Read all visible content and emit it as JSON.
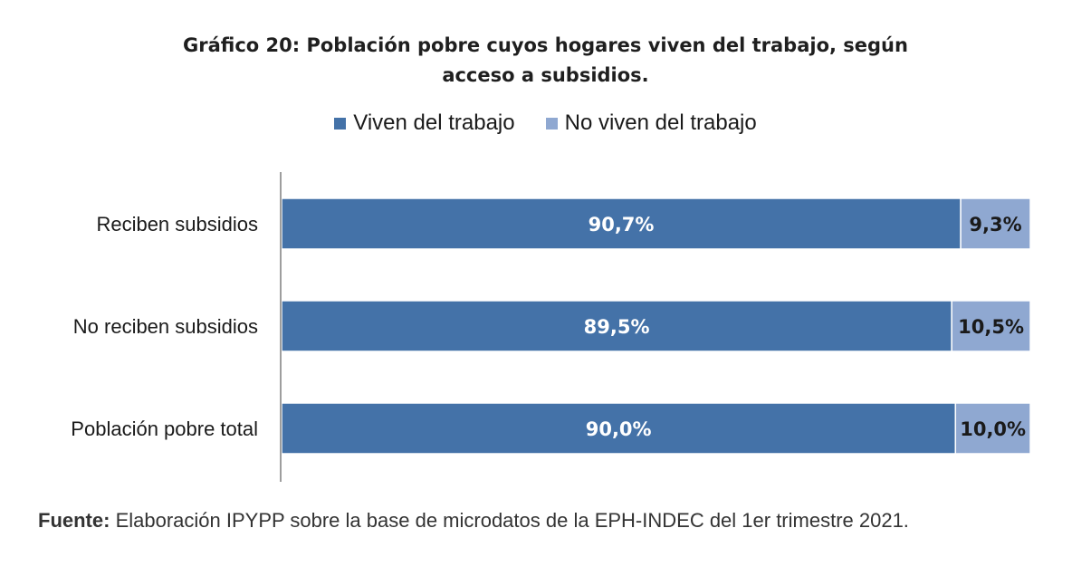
{
  "chart_data": {
    "type": "bar",
    "orientation": "horizontal",
    "stacked": true,
    "title_lines": [
      "Gráfico 20:  Población pobre cuyos hogares viven del trabajo, según",
      "acceso a subsidios."
    ],
    "categories": [
      "Reciben subsidios",
      "No reciben subsidios",
      "Población pobre total"
    ],
    "series": [
      {
        "name": "Viven del trabajo",
        "color": "#4472a8",
        "values": [
          90.7,
          89.5,
          90.0
        ],
        "labels": [
          "90,7%",
          "89,5%",
          "90,0%"
        ]
      },
      {
        "name": "No viven del trabajo",
        "color": "#8fa8d1",
        "values": [
          9.3,
          10.5,
          10.0
        ],
        "labels": [
          "9,3%",
          "10,5%",
          "10,0%"
        ]
      }
    ],
    "xlim": [
      0,
      100
    ],
    "grid": false,
    "legend_position": "top"
  },
  "source": {
    "label": "Fuente:",
    "text": " Elaboración IPYPP sobre la base de microdatos de la EPH-INDEC del 1er trimestre 2021."
  }
}
